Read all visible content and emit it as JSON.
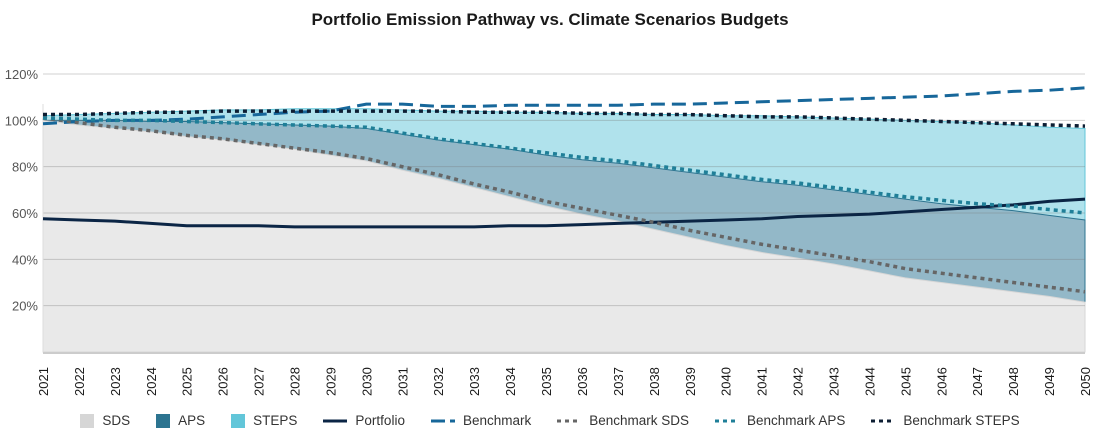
{
  "chart_data": {
    "type": "area",
    "title": "Portfolio Emission Pathway vs. Climate Scenarios Budgets",
    "xlabel": "",
    "ylabel": "",
    "ylim": [
      0,
      120
    ],
    "y_ticks": [
      "20%",
      "40%",
      "60%",
      "80%",
      "100%",
      "120%"
    ],
    "y_tick_values": [
      20,
      40,
      60,
      80,
      100,
      120
    ],
    "grid": true,
    "legend_position": "bottom",
    "x": [
      "2021",
      "2022",
      "2023",
      "2024",
      "2025",
      "2026",
      "2027",
      "2028",
      "2029",
      "2030",
      "2031",
      "2032",
      "2033",
      "2034",
      "2035",
      "2036",
      "2037",
      "2038",
      "2039",
      "2040",
      "2041",
      "2042",
      "2043",
      "2044",
      "2045",
      "2046",
      "2047",
      "2048",
      "2049",
      "2050"
    ],
    "areas": [
      {
        "name": "STEPS",
        "color": "#b0e2ec",
        "legend_color": "#62c6d9",
        "values": [
          102,
          102.5,
          103,
          103.5,
          104,
          104.5,
          104.5,
          105,
          105,
          105,
          104.5,
          104,
          104,
          103.5,
          103.5,
          103,
          103,
          102.5,
          102.5,
          102,
          102,
          101.5,
          101,
          100.5,
          100,
          99.5,
          99,
          98,
          97,
          96.5
        ]
      },
      {
        "name": "APS",
        "color": "#93b8c8",
        "legend_color": "#2c7490",
        "values": [
          100,
          100,
          100,
          99.5,
          99.5,
          99,
          98.5,
          98,
          97.5,
          96.5,
          94,
          91.5,
          89.5,
          87.5,
          85,
          83,
          81.5,
          79.5,
          77.5,
          75.5,
          73.5,
          72,
          70,
          68,
          66,
          64,
          62.5,
          61,
          59,
          57
        ]
      },
      {
        "name": "SDS",
        "color": "#e9e9e9",
        "legend_color": "#d6d6d6",
        "values": [
          100,
          98,
          96.5,
          95,
          93,
          91.5,
          89.5,
          87.5,
          85,
          82.5,
          78.5,
          75,
          71,
          67,
          63,
          59.5,
          56.5,
          53,
          49.5,
          46,
          43,
          40.5,
          38,
          35,
          32,
          30,
          28,
          26,
          24,
          21.5
        ]
      }
    ],
    "lines": [
      {
        "name": "Portfolio",
        "color": "#0b2545",
        "style": "solid",
        "values": [
          57.5,
          57,
          56.5,
          55.5,
          54.5,
          54.5,
          54.5,
          54,
          54,
          54,
          54,
          54,
          54,
          54.5,
          54.5,
          55,
          55.5,
          56,
          56.5,
          57,
          57.5,
          58.5,
          59,
          59.5,
          60.5,
          61.5,
          62.5,
          63.5,
          65,
          66
        ]
      },
      {
        "name": "Benchmark",
        "color": "#17679a",
        "style": "dashed",
        "values": [
          98.5,
          99.5,
          100,
          100,
          100.5,
          101.5,
          102.5,
          103.5,
          104,
          107,
          107,
          106,
          106,
          106.5,
          106.5,
          106.5,
          106.5,
          107,
          107,
          107.5,
          108,
          108.5,
          109,
          109.5,
          110,
          110.5,
          111.5,
          112.5,
          113,
          114
        ]
      },
      {
        "name": "Benchmark SDS",
        "color": "#666666",
        "style": "dotted",
        "values": [
          101,
          99,
          97,
          95.5,
          93.5,
          92,
          90,
          88,
          86,
          83.5,
          80,
          76.5,
          72.5,
          69,
          65,
          62,
          59,
          56,
          52.5,
          49.5,
          46.5,
          44,
          41.5,
          39,
          36,
          34,
          32,
          30,
          28,
          26
        ]
      },
      {
        "name": "Benchmark APS",
        "color": "#1f7f98",
        "style": "dotted",
        "values": [
          101,
          100.5,
          100,
          100,
          99.5,
          99,
          98.5,
          98,
          97.5,
          97,
          94.5,
          92,
          90,
          88,
          86,
          84,
          82.5,
          80.5,
          78.5,
          76.5,
          74.5,
          73,
          71,
          69,
          67,
          65.5,
          64,
          63,
          61.5,
          60
        ]
      },
      {
        "name": "Benchmark STEPS",
        "color": "#0d1e33",
        "style": "dotted",
        "values": [
          102.5,
          102.5,
          103,
          103.5,
          103.5,
          104,
          104,
          104,
          104,
          104,
          104,
          104,
          103.5,
          103.5,
          103.5,
          103,
          103,
          102.5,
          102.5,
          102,
          101.5,
          101.5,
          101,
          100.5,
          100,
          99.5,
          99,
          98.5,
          98,
          97.5
        ]
      }
    ],
    "legend": [
      {
        "label": "SDS",
        "kind": "box",
        "color": "#d6d6d6"
      },
      {
        "label": "APS",
        "kind": "box",
        "color": "#2c7490"
      },
      {
        "label": "STEPS",
        "kind": "box",
        "color": "#62c6d9"
      },
      {
        "label": "Portfolio",
        "kind": "solid",
        "color": "#0b2545"
      },
      {
        "label": "Benchmark",
        "kind": "dashed",
        "color": "#17679a"
      },
      {
        "label": "Benchmark SDS",
        "kind": "dotted",
        "color": "#666666"
      },
      {
        "label": "Benchmark APS",
        "kind": "dotted",
        "color": "#1f7f98"
      },
      {
        "label": "Benchmark STEPS",
        "kind": "dotted",
        "color": "#0d1e33"
      }
    ]
  }
}
